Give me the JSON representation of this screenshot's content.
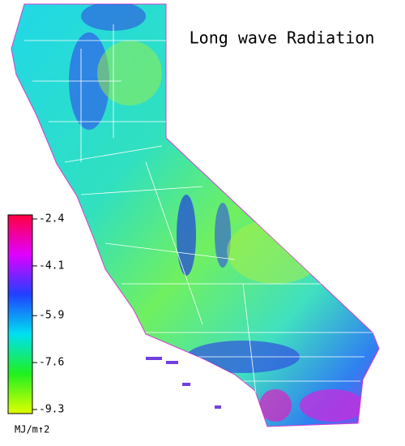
{
  "title": "Long wave Radiation",
  "legend": {
    "ticks": [
      -2.4,
      -4.1,
      -5.9,
      -7.6,
      -9.3
    ],
    "range": [
      -9.3,
      -2.4
    ],
    "unit": "MJ/m↑2"
  }
}
